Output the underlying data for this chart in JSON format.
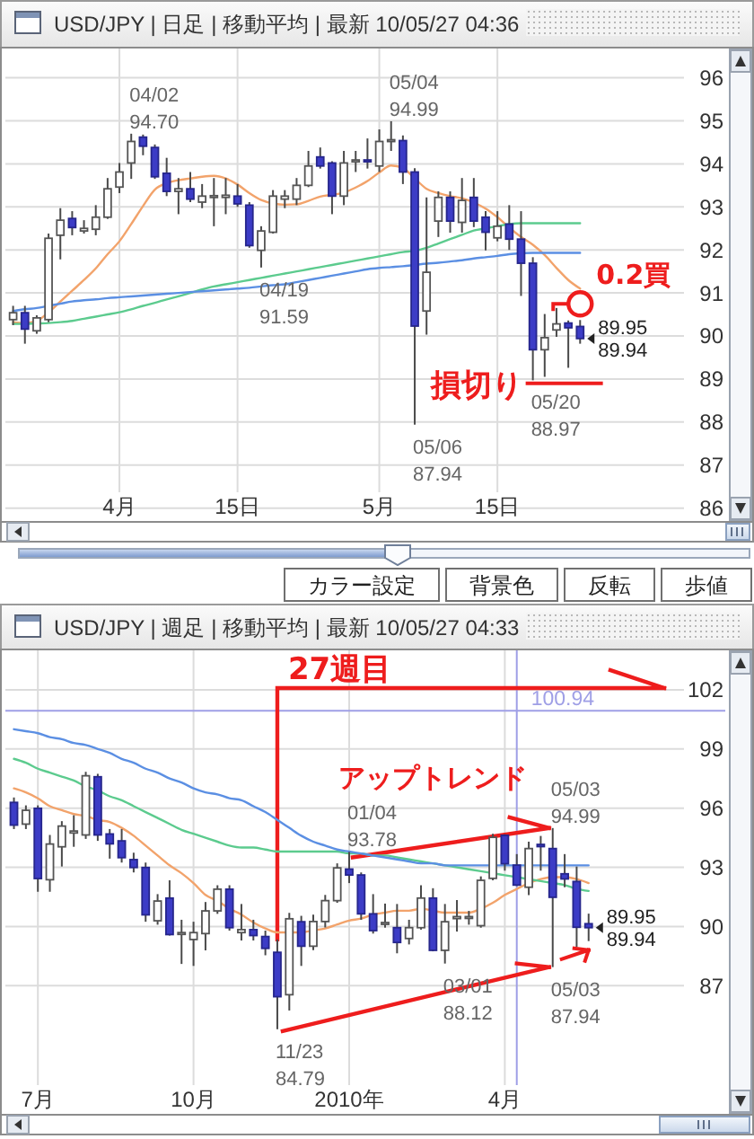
{
  "chart_data": [
    {
      "type": "candlestick",
      "title": "USD/JPY | 日足 | 移動平均 | 最新 10/05/27 04:36",
      "categories": [
        null,
        null,
        null,
        null,
        null,
        null,
        null,
        null,
        null,
        "4月",
        null,
        null,
        null,
        null,
        null,
        null,
        null,
        null,
        null,
        "15日",
        null,
        null,
        null,
        null,
        null,
        null,
        null,
        null,
        null,
        null,
        null,
        "5月",
        null,
        null,
        null,
        null,
        null,
        null,
        null,
        null,
        null,
        "15日",
        null,
        null,
        null,
        null,
        null,
        null,
        null
      ],
      "ohlc": [
        [
          90.38,
          90.7,
          90.25,
          90.54
        ],
        [
          90.54,
          90.7,
          89.82,
          90.16
        ],
        [
          90.12,
          90.48,
          90.05,
          90.42
        ],
        [
          90.38,
          92.38,
          90.32,
          92.27
        ],
        [
          92.34,
          92.97,
          91.78,
          92.69
        ],
        [
          92.73,
          92.9,
          92.34,
          92.52
        ],
        [
          92.44,
          92.69,
          92.38,
          92.5
        ],
        [
          92.48,
          93.04,
          92.34,
          92.76
        ],
        [
          92.76,
          93.67,
          92.72,
          93.42
        ],
        [
          93.46,
          94.02,
          93.32,
          93.81
        ],
        [
          94.02,
          94.7,
          93.65,
          94.52
        ],
        [
          94.62,
          94.68,
          94.2,
          94.41
        ],
        [
          94.38,
          94.45,
          93.65,
          93.7
        ],
        [
          93.78,
          94.14,
          93.25,
          93.36
        ],
        [
          93.36,
          93.67,
          92.83,
          93.42
        ],
        [
          93.42,
          93.81,
          93.11,
          93.18
        ],
        [
          93.11,
          93.53,
          92.97,
          93.25
        ],
        [
          93.22,
          93.67,
          92.55,
          93.26
        ],
        [
          93.22,
          93.67,
          92.83,
          93.27
        ],
        [
          93.25,
          93.53,
          93.0,
          93.07
        ],
        [
          93.04,
          93.11,
          92.05,
          92.1
        ],
        [
          91.99,
          92.55,
          91.59,
          92.44
        ],
        [
          92.41,
          93.39,
          92.38,
          93.25
        ],
        [
          93.18,
          93.39,
          92.97,
          93.25
        ],
        [
          93.18,
          93.67,
          93.04,
          93.5
        ],
        [
          93.5,
          94.3,
          93.46,
          93.95
        ],
        [
          94.16,
          94.38,
          93.89,
          93.95
        ],
        [
          94.02,
          94.06,
          92.83,
          93.25
        ],
        [
          93.25,
          94.3,
          93.04,
          94.02
        ],
        [
          94.05,
          94.3,
          93.81,
          94.09
        ],
        [
          94.09,
          94.59,
          93.89,
          94.05
        ],
        [
          93.95,
          94.8,
          93.81,
          94.52
        ],
        [
          94.52,
          94.99,
          94.3,
          94.56
        ],
        [
          94.54,
          94.66,
          93.53,
          93.81
        ],
        [
          93.81,
          93.9,
          87.94,
          90.23
        ],
        [
          90.58,
          93.22,
          90.03,
          91.48
        ],
        [
          92.67,
          93.36,
          92.3,
          93.22
        ],
        [
          93.22,
          93.36,
          92.4,
          92.67
        ],
        [
          92.64,
          93.67,
          92.4,
          93.15
        ],
        [
          93.22,
          93.67,
          92.53,
          92.67
        ],
        [
          92.76,
          92.9,
          91.99,
          92.41
        ],
        [
          92.28,
          92.9,
          92.2,
          92.55
        ],
        [
          92.6,
          93.04,
          92.0,
          92.25
        ],
        [
          92.25,
          92.9,
          90.93,
          91.69
        ],
        [
          91.69,
          91.83,
          88.97,
          89.68
        ],
        [
          89.68,
          90.51,
          89.05,
          89.96
        ],
        [
          90.14,
          90.65,
          89.98,
          90.28
        ],
        [
          90.3,
          90.36,
          89.26,
          90.19
        ],
        [
          90.22,
          90.37,
          89.82,
          89.94
        ]
      ],
      "series": [
        {
          "type": "line",
          "color": "#f2a36b",
          "values": [
            90.32,
            90.3,
            90.35,
            90.55,
            90.8,
            91.05,
            91.3,
            91.57,
            91.9,
            92.2,
            92.6,
            93.02,
            93.4,
            93.55,
            93.62,
            93.66,
            93.7,
            93.72,
            93.66,
            93.52,
            93.32,
            93.16,
            93.08,
            93.05,
            93.06,
            93.14,
            93.24,
            93.28,
            93.33,
            93.45,
            93.6,
            93.8,
            93.96,
            93.9,
            93.66,
            93.42,
            93.32,
            93.25,
            93.2,
            93.1,
            92.96,
            92.76,
            92.52,
            92.3,
            92.12,
            91.88,
            91.58,
            91.3,
            91.1
          ]
        },
        {
          "type": "line",
          "color": "#5ccb8e",
          "values": [
            90.28,
            90.28,
            90.29,
            90.3,
            90.32,
            90.35,
            90.4,
            90.45,
            90.5,
            90.55,
            90.62,
            90.7,
            90.77,
            90.85,
            90.92,
            91.0,
            91.08,
            91.15,
            91.2,
            91.25,
            91.3,
            91.35,
            91.4,
            91.45,
            91.5,
            91.55,
            91.6,
            91.65,
            91.7,
            91.75,
            91.8,
            91.85,
            91.9,
            91.95,
            91.98,
            92.05,
            92.15,
            92.25,
            92.35,
            92.45,
            92.5,
            92.55,
            92.6,
            92.62,
            92.62,
            92.62,
            92.62,
            92.62,
            92.62
          ]
        },
        {
          "type": "line",
          "color": "#5b8fe3",
          "values": [
            90.58,
            90.62,
            90.65,
            90.7,
            90.75,
            90.8,
            90.83,
            90.85,
            90.88,
            90.9,
            90.92,
            90.94,
            90.96,
            90.98,
            91.0,
            91.02,
            91.04,
            91.06,
            91.08,
            91.1,
            91.12,
            91.15,
            91.18,
            91.2,
            91.25,
            91.3,
            91.35,
            91.4,
            91.45,
            91.5,
            91.55,
            91.58,
            91.6,
            91.62,
            91.65,
            91.68,
            91.7,
            91.73,
            91.76,
            91.8,
            91.83,
            91.86,
            91.9,
            91.92,
            91.93,
            91.93,
            91.93,
            91.93,
            91.93
          ]
        }
      ],
      "ylim": [
        85.7,
        96.68
      ],
      "yticks": [
        86,
        87,
        88,
        89,
        90,
        91,
        92,
        93,
        94,
        95,
        96
      ],
      "grid": true,
      "ref_lines": [
        {
          "axis": "y",
          "value": 88.9,
          "label": "損切り",
          "color": "#ee1d1d"
        }
      ],
      "annotations": [
        "04/02\n94.70",
        "05/04\n94.99",
        "04/19\n91.59",
        "05/06\n87.94",
        "05/20\n88.97",
        "89.95",
        "89.94",
        "0.2買"
      ]
    },
    {
      "type": "other",
      "annotations": [
        "カラー設定",
        "背景色",
        "反転",
        "歩値"
      ]
    },
    {
      "type": "candlestick",
      "title": "USD/JPY | 週足 | 移動平均 | 最新 10/05/27 04:33",
      "x": [
        "2009-06-22",
        "2009-06-29",
        "2009-07-06",
        "2009-07-13",
        "2009-07-20",
        "2009-07-27",
        "2009-08-03",
        "2009-08-10",
        "2009-08-17",
        "2009-08-24",
        "2009-08-31",
        "2009-09-07",
        "2009-09-14",
        "2009-09-21",
        "2009-09-28",
        "2009-10-05",
        "2009-10-12",
        "2009-10-19",
        "2009-10-26",
        "2009-11-02",
        "2009-11-09",
        "2009-11-16",
        "2009-11-23",
        "2009-11-30",
        "2009-12-07",
        "2009-12-14",
        "2009-12-21",
        "2009-12-28",
        "2010-01-04",
        "2010-01-11",
        "2010-01-18",
        "2010-01-25",
        "2010-02-01",
        "2010-02-08",
        "2010-02-15",
        "2010-02-22",
        "2010-03-01",
        "2010-03-08",
        "2010-03-15",
        "2010-03-22",
        "2010-03-29",
        "2010-04-05",
        "2010-04-12",
        "2010-04-19",
        "2010-04-26",
        "2010-05-03",
        "2010-05-10",
        "2010-05-17",
        "2010-05-24"
      ],
      "ohlc": [
        [
          96.29,
          96.54,
          94.94,
          95.14
        ],
        [
          95.19,
          96.14,
          94.94,
          95.89
        ],
        [
          95.99,
          96.14,
          91.76,
          92.43
        ],
        [
          92.37,
          94.64,
          91.76,
          94.18
        ],
        [
          94.04,
          95.34,
          93.04,
          95.09
        ],
        [
          94.74,
          95.64,
          94.04,
          94.84
        ],
        [
          94.64,
          97.84,
          94.44,
          97.64
        ],
        [
          97.59,
          97.74,
          94.34,
          94.64
        ],
        [
          94.69,
          94.94,
          93.44,
          94.19
        ],
        [
          94.34,
          94.94,
          93.24,
          93.49
        ],
        [
          93.39,
          93.74,
          92.74,
          92.99
        ],
        [
          92.99,
          93.24,
          90.24,
          90.59
        ],
        [
          90.29,
          91.64,
          90.09,
          91.29
        ],
        [
          91.44,
          92.34,
          89.54,
          89.59
        ],
        [
          89.64,
          90.34,
          88.1,
          89.69
        ],
        [
          89.34,
          90.24,
          88.0,
          89.69
        ],
        [
          89.64,
          91.24,
          88.79,
          90.79
        ],
        [
          90.79,
          92.09,
          90.64,
          91.89
        ],
        [
          91.89,
          92.09,
          89.79,
          89.94
        ],
        [
          89.69,
          91.14,
          89.29,
          89.84
        ],
        [
          89.84,
          90.34,
          89.29,
          89.54
        ],
        [
          89.49,
          89.79,
          88.54,
          88.89
        ],
        [
          88.69,
          89.34,
          84.79,
          86.44
        ],
        [
          86.54,
          90.69,
          85.74,
          90.39
        ],
        [
          90.24,
          90.54,
          88.0,
          89.0
        ],
        [
          89.0,
          90.6,
          88.8,
          90.25
        ],
        [
          90.25,
          91.6,
          89.95,
          91.31
        ],
        [
          91.31,
          93.2,
          91.2,
          92.97
        ],
        [
          92.91,
          93.78,
          92.2,
          92.61
        ],
        [
          92.61,
          92.74,
          90.34,
          90.64
        ],
        [
          90.64,
          91.64,
          89.64,
          89.79
        ],
        [
          90.14,
          91.16,
          89.94,
          90.2
        ],
        [
          89.94,
          91.14,
          88.64,
          89.19
        ],
        [
          89.39,
          90.34,
          89.09,
          89.94
        ],
        [
          89.94,
          92.09,
          89.84,
          91.44
        ],
        [
          91.44,
          91.94,
          88.74,
          88.79
        ],
        [
          88.79,
          91.14,
          88.12,
          90.24
        ],
        [
          90.4,
          91.34,
          89.74,
          90.5
        ],
        [
          90.45,
          90.79,
          90.09,
          90.5
        ],
        [
          90.04,
          92.54,
          89.94,
          92.34
        ],
        [
          92.44,
          94.7,
          92.34,
          94.52
        ],
        [
          94.62,
          94.68,
          92.83,
          93.18
        ],
        [
          93.11,
          93.67,
          92.05,
          92.1
        ],
        [
          91.99,
          94.3,
          91.59,
          93.95
        ],
        [
          94.16,
          94.59,
          92.83,
          94.05
        ],
        [
          93.95,
          94.99,
          87.94,
          91.48
        ],
        [
          92.67,
          93.67,
          91.99,
          92.41
        ],
        [
          92.28,
          93.04,
          88.97,
          89.96
        ],
        [
          90.14,
          90.65,
          89.26,
          89.94
        ]
      ],
      "series": [
        {
          "type": "line",
          "color": "#f2a36b",
          "values": [
            97.0,
            96.8,
            96.5,
            96.1,
            95.9,
            95.7,
            95.6,
            95.4,
            95.3,
            95.0,
            94.6,
            94.1,
            93.6,
            93.1,
            92.7,
            92.2,
            91.6,
            91.3,
            90.9,
            90.6,
            90.2,
            89.9,
            89.7,
            89.7,
            89.7,
            89.8,
            89.9,
            90.1,
            90.3,
            90.4,
            90.6,
            90.7,
            90.8,
            90.8,
            90.9,
            90.8,
            90.7,
            90.7,
            90.7,
            90.9,
            91.2,
            91.6,
            91.9,
            92.2,
            92.4,
            92.5,
            92.5,
            92.4,
            92.2
          ]
        },
        {
          "type": "line",
          "color": "#5ccb8e",
          "values": [
            98.5,
            98.3,
            98.0,
            97.8,
            97.6,
            97.4,
            97.1,
            96.9,
            96.6,
            96.4,
            96.1,
            95.8,
            95.5,
            95.2,
            94.9,
            94.7,
            94.5,
            94.3,
            94.1,
            94.0,
            94.0,
            93.9,
            93.8,
            93.8,
            93.8,
            93.8,
            93.8,
            93.8,
            93.7,
            93.7,
            93.6,
            93.6,
            93.5,
            93.4,
            93.3,
            93.2,
            93.1,
            93.0,
            92.9,
            92.8,
            92.7,
            92.6,
            92.5,
            92.4,
            92.3,
            92.2,
            92.1,
            91.9,
            91.8
          ]
        },
        {
          "type": "line",
          "color": "#5b8fe3",
          "values": [
            100.0,
            99.9,
            99.8,
            99.6,
            99.5,
            99.3,
            99.2,
            99.0,
            98.8,
            98.5,
            98.3,
            98.0,
            97.8,
            97.5,
            97.3,
            97.0,
            96.8,
            96.7,
            96.5,
            96.4,
            96.1,
            95.8,
            95.4,
            95.0,
            94.6,
            94.3,
            94.1,
            93.9,
            93.8,
            93.7,
            93.6,
            93.5,
            93.4,
            93.3,
            93.2,
            93.2,
            93.1,
            93.1,
            93.1,
            93.1,
            93.1,
            93.1,
            93.1,
            93.1,
            93.1,
            93.1,
            93.1,
            93.1,
            93.1
          ]
        }
      ],
      "xlim": [
        "2009-06-17",
        "2010-08-14"
      ],
      "xticks": [
        {
          "value": "2009-07-06",
          "label": "7月"
        },
        {
          "value": "2009-10-05",
          "label": "10月"
        },
        {
          "value": "2010-01-04",
          "label": "2010年"
        },
        {
          "value": "2010-04-05",
          "label": "4月"
        }
      ],
      "ylim": [
        80.5,
        104
      ],
      "yticks": [
        87,
        90,
        93,
        96,
        99,
        102
      ],
      "grid": true,
      "ref_lines": [
        {
          "axis": "y",
          "value": 100.94,
          "label": "100.94",
          "color": "#9f9fe6"
        },
        {
          "axis": "x",
          "value": "2010-04-12",
          "color": "#9f9fe6"
        }
      ],
      "annotations": [
        "27週目",
        "アップトレンド",
        {
          "text": "01/04\n93.78",
          "x": "2010-01-04",
          "y": 93.78
        },
        {
          "text": "05/03\n94.99",
          "x": "2010-05-03",
          "y": 94.99
        },
        {
          "text": "11/23\n84.79",
          "x": "2009-11-23",
          "y": 84.79
        },
        {
          "text": "03/01\n88.12",
          "x": "2010-03-01",
          "y": 88.12
        },
        {
          "text": "05/03\n87.94",
          "x": "2010-05-03",
          "y": 87.94
        },
        {
          "text": "89.95",
          "x": "2010-05-24",
          "y": 89.95
        },
        {
          "text": "89.94",
          "x": "2010-05-24",
          "y": 89.94
        }
      ]
    }
  ]
}
